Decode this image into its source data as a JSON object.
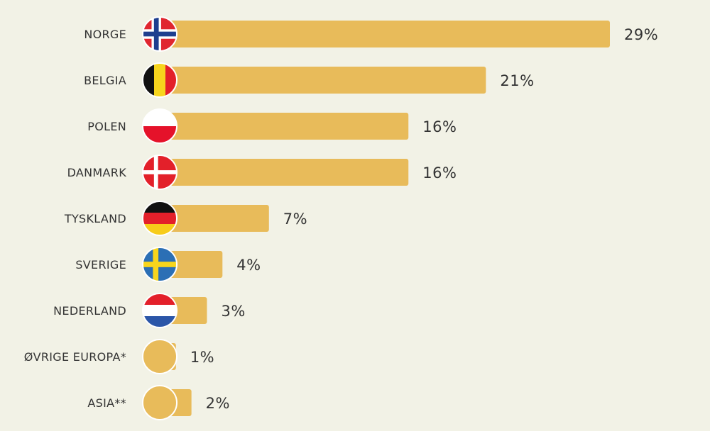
{
  "chart_data": {
    "type": "bar",
    "orientation": "horizontal",
    "categories": [
      "NORGE",
      "BELGIA",
      "POLEN",
      "DANMARK",
      "TYSKLAND",
      "SVERIGE",
      "NEDERLAND",
      "ØVRIGE EUROPA*",
      "ASIA**"
    ],
    "values": [
      29,
      21,
      16,
      16,
      7,
      4,
      3,
      1,
      2
    ],
    "value_labels": [
      "29%",
      "21%",
      "16%",
      "16%",
      "7%",
      "4%",
      "3%",
      "1%",
      "2%"
    ],
    "flags": [
      "norway-flag",
      "belgium-flag",
      "poland-flag",
      "denmark-flag",
      "germany-flag",
      "sweden-flag",
      "netherlands-flag",
      "plain-circle",
      "plain-circle"
    ],
    "unit": "%",
    "xlim": [
      0,
      29
    ],
    "title": "",
    "xlabel": "",
    "ylabel": "",
    "grid": false,
    "legend": "none"
  },
  "colors": {
    "background": "#f2f2e6",
    "bar": "#e8bb5a",
    "label": "#333333"
  }
}
